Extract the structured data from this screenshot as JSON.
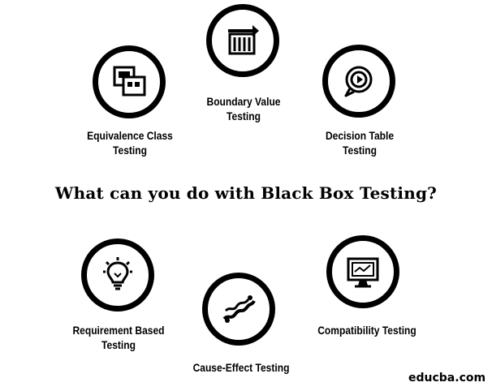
{
  "title": "What can you do with Black Box Testing?",
  "items": [
    {
      "label_line1": "Boundary Value",
      "label_line2": "Testing",
      "icon": "boundary-value-icon"
    },
    {
      "label_line1": "Equivalence Class",
      "label_line2": "Testing",
      "icon": "equivalence-class-icon"
    },
    {
      "label_line1": "Decision Table",
      "label_line2": "Testing",
      "icon": "decision-table-icon"
    },
    {
      "label_line1": "Requirement Based",
      "label_line2": "Testing",
      "icon": "requirement-lightbulb-icon"
    },
    {
      "label_line1": "Cause-Effect Testing",
      "label_line2": "",
      "icon": "cause-effect-icon"
    },
    {
      "label_line1": "Compatibility Testing",
      "label_line2": "",
      "icon": "compatibility-monitor-icon"
    }
  ],
  "watermark": "educba.com"
}
